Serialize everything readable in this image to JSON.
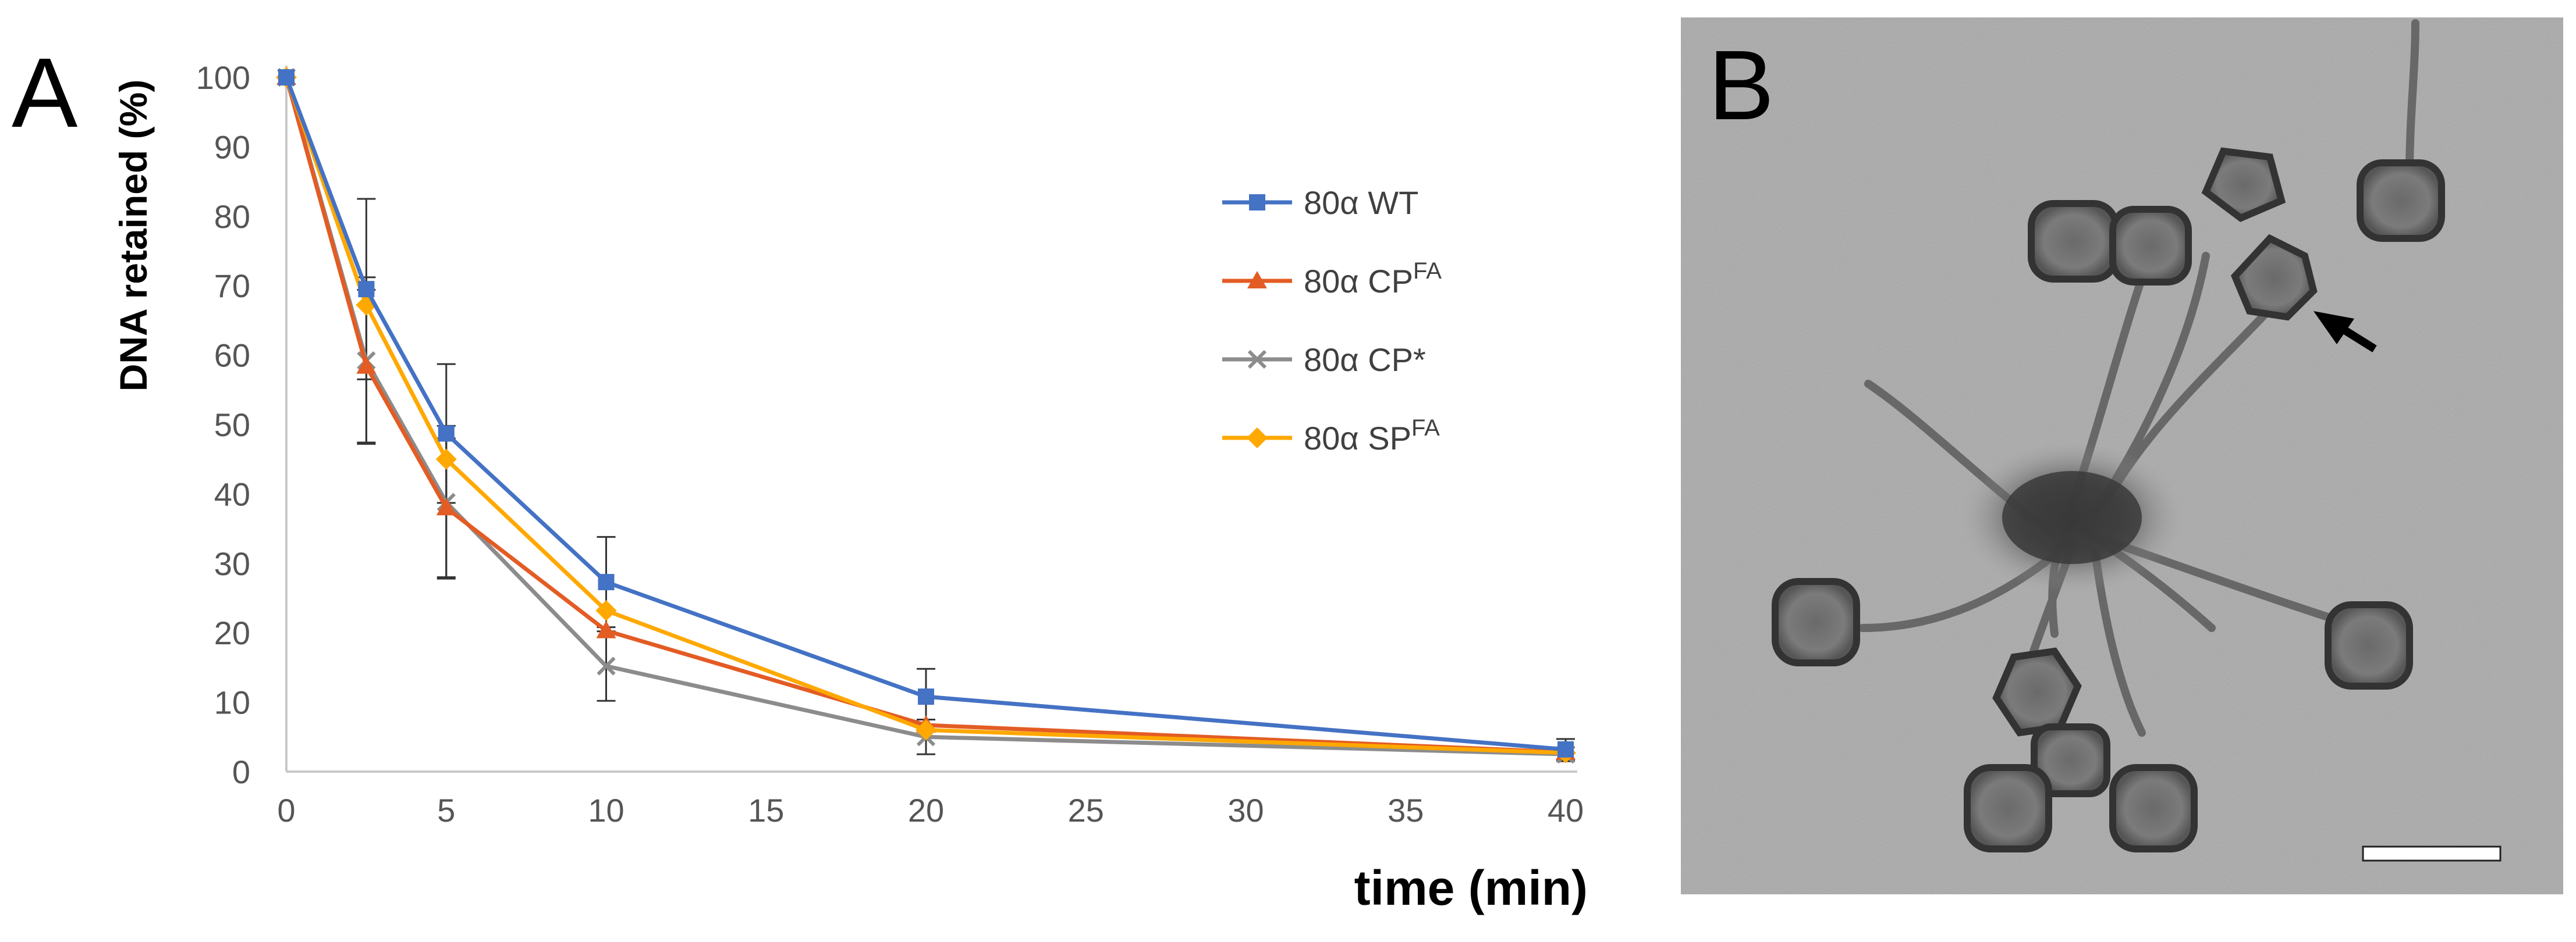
{
  "panels": {
    "a": "A",
    "b": "B"
  },
  "chart_data": {
    "type": "line",
    "title": "",
    "xlabel": "time (min)",
    "ylabel": "DNA retained (%)",
    "xlim": [
      0,
      40
    ],
    "ylim": [
      0,
      100
    ],
    "x_ticks": [
      0,
      5,
      10,
      15,
      20,
      25,
      30,
      35,
      40
    ],
    "y_ticks": [
      0,
      10,
      20,
      30,
      40,
      50,
      60,
      70,
      80,
      90,
      100
    ],
    "x": [
      0,
      2.5,
      5,
      10,
      20,
      40
    ],
    "grid": false,
    "legend_position": "top-right",
    "series": [
      {
        "name": "80α WT",
        "base": "80α WT",
        "sup": "",
        "color": "#4472C4",
        "marker": "square",
        "values": [
          100,
          69.5,
          48.7,
          27.3,
          10.8,
          3.2
        ],
        "error": [
          0,
          13.0,
          10.0,
          6.5,
          4.0,
          1.5
        ]
      },
      {
        "name": "80α CP FA",
        "base": "80α CP",
        "sup": "FA",
        "color": "#E35C24",
        "marker": "triangle",
        "values": [
          100,
          58.4,
          38.0,
          20.3,
          6.7,
          2.8
        ],
        "error": [
          0,
          11.0,
          10.0,
          0,
          0,
          0
        ]
      },
      {
        "name": "80α CP*",
        "base": "80α CP*",
        "sup": "",
        "color": "#8C8C8C",
        "marker": "x",
        "values": [
          100,
          59.2,
          38.8,
          15.2,
          5.0,
          2.5
        ],
        "error": [
          0,
          12.0,
          11.0,
          5.0,
          2.5,
          1.0
        ]
      },
      {
        "name": "80α SP FA",
        "base": "80α SP",
        "sup": "FA",
        "color": "#FFA800",
        "marker": "diamond",
        "values": [
          100,
          67.2,
          45.0,
          23.2,
          6.0,
          2.7
        ],
        "error": [
          0,
          0,
          0,
          0,
          0,
          0
        ]
      }
    ]
  },
  "micrograph": {
    "subject": "electron-micrograph",
    "arrow_icon": "arrow-icon",
    "scale_bar_icon": "scale-bar-icon"
  }
}
